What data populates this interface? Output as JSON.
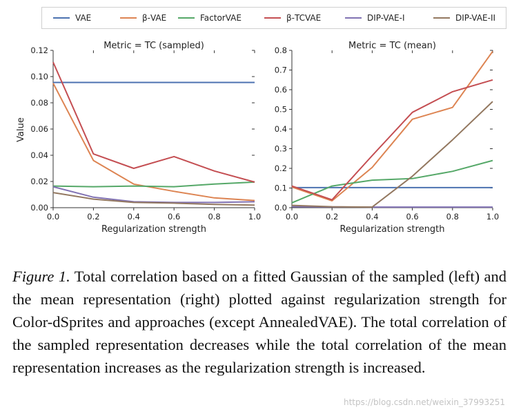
{
  "legend": [
    {
      "label": "VAE",
      "color": "#4c72b0"
    },
    {
      "label": "β-VAE",
      "color": "#dd8452"
    },
    {
      "label": "FactorVAE",
      "color": "#55a868"
    },
    {
      "label": "β-TCVAE",
      "color": "#c44e52"
    },
    {
      "label": "DIP-VAE-I",
      "color": "#8172b3"
    },
    {
      "label": "DIP-VAE-II",
      "color": "#937860"
    }
  ],
  "chart_data": [
    {
      "type": "line",
      "title": "Metric = TC (sampled)",
      "xlabel": "Regularization strength",
      "ylabel": "Value",
      "xlim": [
        0.0,
        1.0
      ],
      "ylim": [
        0.0,
        0.12
      ],
      "x_ticks": [
        "0.0",
        "0.2",
        "0.4",
        "0.6",
        "0.8",
        "1.0"
      ],
      "y_ticks": [
        "0.00",
        "0.02",
        "0.04",
        "0.06",
        "0.08",
        "0.10",
        "0.12"
      ],
      "x": [
        0.0,
        0.2,
        0.4,
        0.6,
        0.8,
        1.0
      ],
      "series": [
        {
          "name": "VAE",
          "values": [
            0.0955,
            0.0955,
            0.0955,
            0.0955,
            0.0955,
            0.0955
          ]
        },
        {
          "name": "β-VAE",
          "values": [
            0.095,
            0.036,
            0.018,
            0.0125,
            0.0075,
            0.0055
          ]
        },
        {
          "name": "FactorVAE",
          "values": [
            0.0165,
            0.016,
            0.0165,
            0.016,
            0.018,
            0.0195
          ]
        },
        {
          "name": "β-TCVAE",
          "values": [
            0.111,
            0.041,
            0.03,
            0.039,
            0.028,
            0.0195
          ]
        },
        {
          "name": "DIP-VAE-I",
          "values": [
            0.016,
            0.008,
            0.0045,
            0.004,
            0.004,
            0.0045
          ]
        },
        {
          "name": "DIP-VAE-II",
          "values": [
            0.0115,
            0.0065,
            0.004,
            0.0035,
            0.0025,
            0.002
          ]
        }
      ]
    },
    {
      "type": "line",
      "title": "Metric = TC (mean)",
      "xlabel": "Regularization strength",
      "ylabel": "",
      "xlim": [
        0.0,
        1.0
      ],
      "ylim": [
        0.0,
        0.8
      ],
      "x_ticks": [
        "0.0",
        "0.2",
        "0.4",
        "0.6",
        "0.8",
        "1.0"
      ],
      "y_ticks": [
        "0.0",
        "0.1",
        "0.2",
        "0.3",
        "0.4",
        "0.5",
        "0.6",
        "0.7",
        "0.8"
      ],
      "x": [
        0.0,
        0.2,
        0.4,
        0.6,
        0.8,
        1.0
      ],
      "series": [
        {
          "name": "VAE",
          "values": [
            0.102,
            0.102,
            0.102,
            0.102,
            0.102,
            0.102
          ]
        },
        {
          "name": "β-VAE",
          "values": [
            0.105,
            0.035,
            0.205,
            0.45,
            0.51,
            0.795
          ]
        },
        {
          "name": "FactorVAE",
          "values": [
            0.025,
            0.11,
            0.14,
            0.148,
            0.185,
            0.24
          ]
        },
        {
          "name": "β-TCVAE",
          "values": [
            0.11,
            0.04,
            0.265,
            0.485,
            0.59,
            0.65
          ]
        },
        {
          "name": "DIP-VAE-I",
          "values": [
            0.005,
            0.004,
            0.003,
            0.003,
            0.003,
            0.003
          ]
        },
        {
          "name": "DIP-VAE-II",
          "values": [
            0.012,
            0.005,
            0.003,
            0.16,
            0.345,
            0.54
          ]
        }
      ]
    }
  ],
  "caption": {
    "label": "Figure 1.",
    "text": "Total correlation based on a fitted Gaussian of the sampled (left) and the mean representation (right) plotted against regularization strength for Color-dSprites and approaches (except AnnealedVAE). The total correlation of the sampled representation decreases while the total correlation of the mean representation increases as the regularization strength is increased."
  },
  "watermark": "https://blog.csdn.net/weixin_37993251"
}
